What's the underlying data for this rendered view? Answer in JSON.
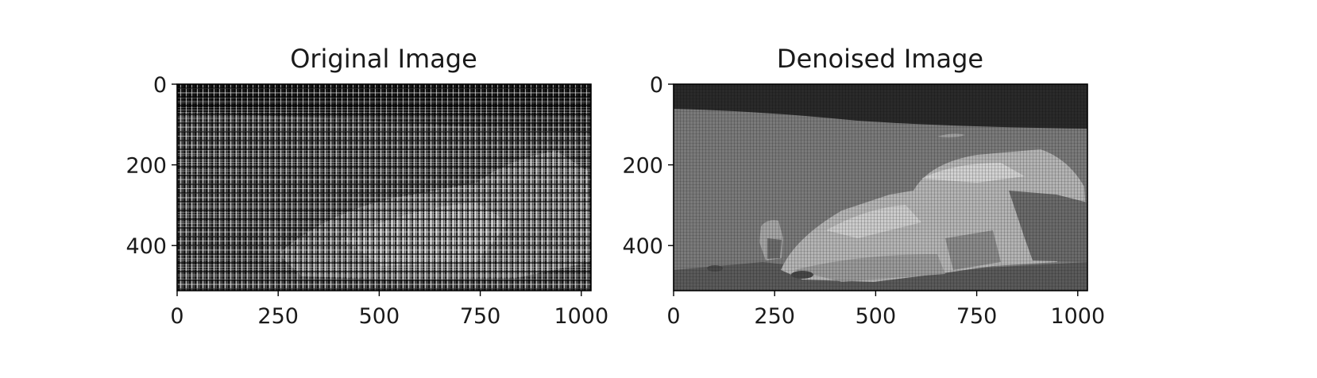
{
  "panels": [
    {
      "title": "Original Image",
      "tone": "noisy",
      "x_ticks": [
        "0",
        "250",
        "500",
        "750",
        "1000"
      ],
      "y_ticks": [
        "0",
        "200",
        "400"
      ]
    },
    {
      "title": "Denoised Image",
      "tone": "clean",
      "x_ticks": [
        "0",
        "250",
        "500",
        "750",
        "1000"
      ],
      "y_ticks": [
        "0",
        "200",
        "400"
      ]
    }
  ],
  "x_tick_values": [
    0,
    250,
    500,
    750,
    1000
  ],
  "y_tick_values": [
    0,
    200,
    400
  ],
  "image_width": 1024,
  "image_height": 512,
  "colors": {
    "sky": "#2a2a2a",
    "ground": "#7d7d7d",
    "rock": "#b8b8b8"
  }
}
